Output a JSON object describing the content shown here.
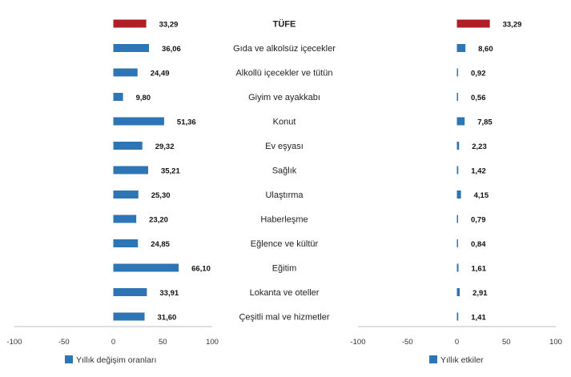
{
  "chart_data": [
    {
      "type": "bar",
      "orientation": "horizontal",
      "categories": [
        "TÜFE",
        "Gıda ve alkolsüz içecekler",
        "Alkollü içecekler ve tütün",
        "Giyim ve ayakkabı",
        "Konut",
        "Ev eşyası",
        "Sağlık",
        "Ulaştırma",
        "Haberleşme",
        "Eğlence ve kültür",
        "Eğitim",
        "Lokanta ve oteller",
        "Çeşitli mal ve hizmetler"
      ],
      "series": [
        {
          "name": "Yıllık değişim oranları",
          "values": [
            33.29,
            36.06,
            24.49,
            9.8,
            51.36,
            29.32,
            35.21,
            25.3,
            23.2,
            24.85,
            66.1,
            33.91,
            31.6
          ],
          "labels": [
            "33,29",
            "36,06",
            "24,49",
            "9,80",
            "51,36",
            "29,32",
            "35,21",
            "25,30",
            "23,20",
            "24,85",
            "66,10",
            "33,91",
            "31,60"
          ]
        }
      ],
      "xlim": [
        -100,
        100
      ],
      "xticks": [
        "-100",
        "-50",
        "0",
        "50",
        "100"
      ],
      "legend": "bottom-left",
      "colors": {
        "highlight": "#ad1f24",
        "bar": "#2e75b6"
      }
    },
    {
      "type": "bar",
      "orientation": "horizontal",
      "categories": [
        "TÜFE",
        "Gıda ve alkolsüz içecekler",
        "Alkollü içecekler ve tütün",
        "Giyim ve ayakkabı",
        "Konut",
        "Ev eşyası",
        "Sağlık",
        "Ulaştırma",
        "Haberleşme",
        "Eğlence ve kültür",
        "Eğitim",
        "Lokanta ve oteller",
        "Çeşitli mal ve hizmetler"
      ],
      "series": [
        {
          "name": "Yıllık etkiler",
          "values": [
            33.29,
            8.6,
            0.92,
            0.56,
            7.85,
            2.23,
            1.42,
            4.15,
            0.79,
            0.84,
            1.61,
            2.91,
            1.41
          ],
          "labels": [
            "33,29",
            "8,60",
            "0,92",
            "0,56",
            "7,85",
            "2,23",
            "1,42",
            "4,15",
            "0,79",
            "0,84",
            "1,61",
            "2,91",
            "1,41"
          ]
        }
      ],
      "xlim": [
        -100,
        100
      ],
      "xticks": [
        "-100",
        "-50",
        "0",
        "50",
        "100"
      ],
      "legend": "bottom-center",
      "colors": {
        "highlight": "#ad1f24",
        "bar": "#2e75b6"
      }
    }
  ]
}
